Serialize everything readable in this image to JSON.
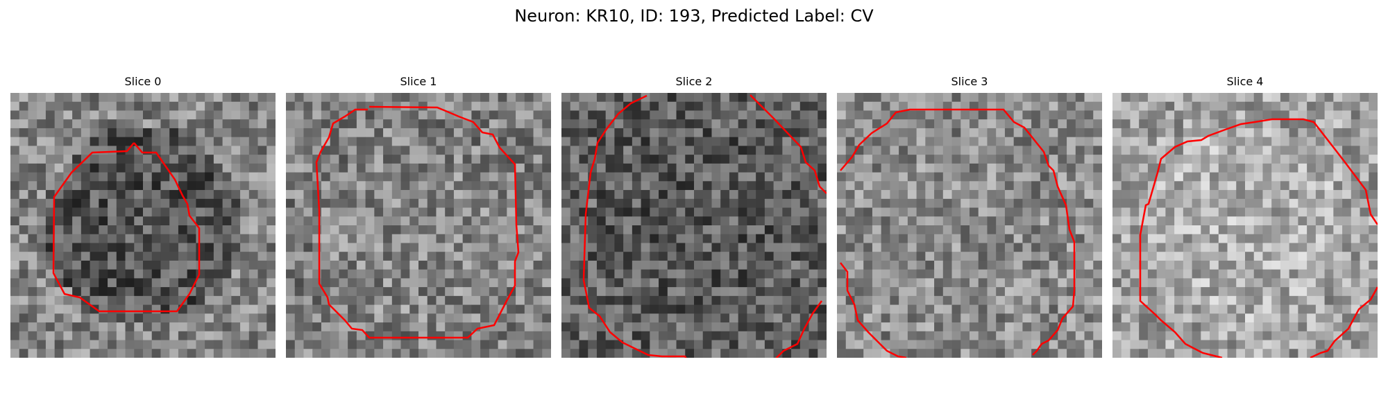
{
  "figure": {
    "title": "Neuron: KR10, ID: 193, Predicted Label: CV"
  },
  "panels": [
    {
      "title": "Slice 0",
      "tone_base": 120,
      "inner_shift": -35,
      "contour_color": "#ff0000"
    },
    {
      "title": "Slice 1",
      "tone_base": 130,
      "inner_shift": 5,
      "contour_color": "#ff0000"
    },
    {
      "title": "Slice 2",
      "tone_base": 95,
      "inner_shift": -5,
      "contour_color": "#ff0000"
    },
    {
      "title": "Slice 3",
      "tone_base": 140,
      "inner_shift": 0,
      "contour_color": "#ff0000"
    },
    {
      "title": "Slice 4",
      "tone_base": 165,
      "inner_shift": 10,
      "contour_color": "#ff0000"
    }
  ],
  "colors": {
    "background": "#ffffff",
    "contour": "#ff0000"
  }
}
